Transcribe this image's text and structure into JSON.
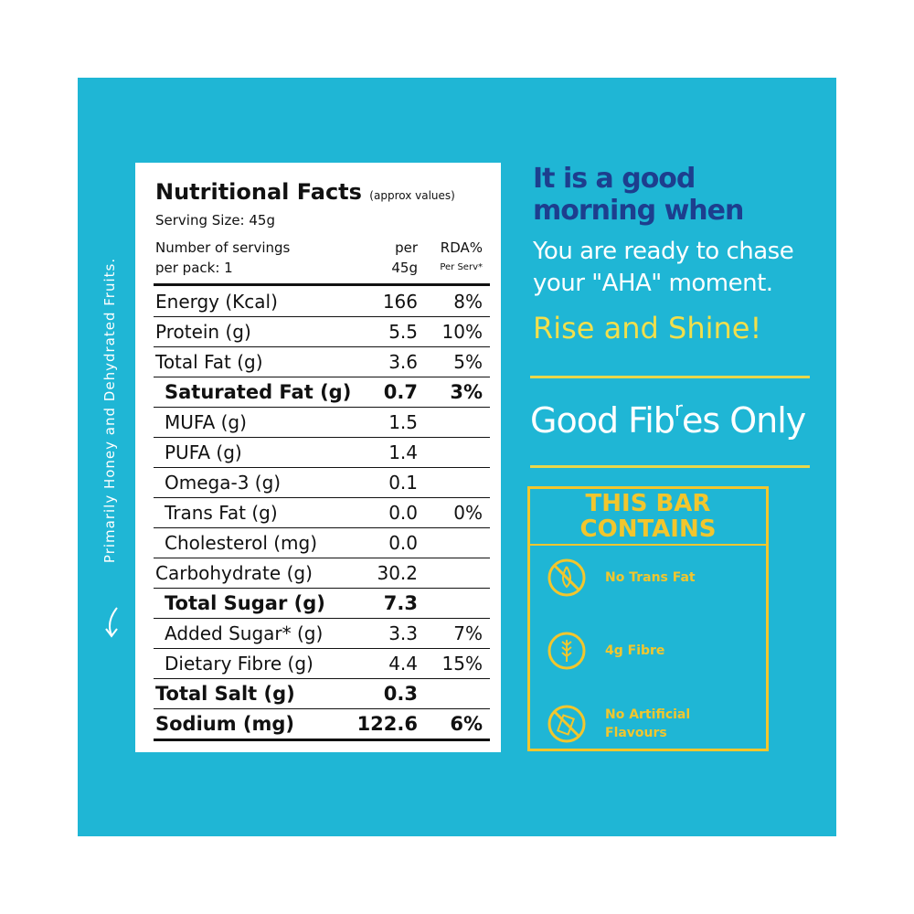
{
  "panel": {
    "side_note": "Primarily Honey and Dehydrated Fruits."
  },
  "table": {
    "title": "Nutritional Facts",
    "title_note": "(approx values)",
    "serving_size": "Serving Size: 45g",
    "servings": [
      "Number of servings",
      "per pack: 1"
    ],
    "col_per": [
      "per",
      "45g"
    ],
    "col_rda": [
      "RDA%",
      "Per Serv*"
    ],
    "rows": [
      {
        "label": "Energy (Kcal)",
        "per": "166",
        "rda": "8%"
      },
      {
        "label": "Protein (g)",
        "per": "5.5",
        "rda": "10%"
      },
      {
        "label": "Total Fat (g)",
        "per": "3.6",
        "rda": "5%"
      },
      {
        "label": "Saturated Fat (g)",
        "per": "0.7",
        "rda": "3%",
        "bold": true,
        "indent": true
      },
      {
        "label": "MUFA (g)",
        "per": "1.5",
        "indent": true
      },
      {
        "label": "PUFA (g)",
        "per": "1.4",
        "indent": true
      },
      {
        "label": "Omega-3 (g)",
        "per": "0.1",
        "indent": true
      },
      {
        "label": "Trans Fat (g)",
        "per": "0.0",
        "rda": "0%",
        "indent": true
      },
      {
        "label": "Cholesterol (mg)",
        "per": "0.0",
        "indent": true
      },
      {
        "label": "Carbohydrate (g)",
        "per": "30.2"
      },
      {
        "label": "Total Sugar (g)",
        "per": "7.3",
        "bold": true,
        "indent": true
      },
      {
        "label": "Added Sugar* (g)",
        "per": "3.3",
        "rda": "7%",
        "indent": true
      },
      {
        "label": "Dietary Fibre (g)",
        "per": "4.4",
        "rda": "15%",
        "indent": true
      },
      {
        "label": "Total Salt (g)",
        "per": "0.3",
        "bold": true
      },
      {
        "label": "Sodium (mg)",
        "per": "122.6",
        "rda": "6%",
        "bold": true
      }
    ]
  },
  "promo": {
    "headline": [
      "It is a good",
      "morning when"
    ],
    "subline": [
      "You are ready to chase",
      "your \"AHA\" moment."
    ],
    "slogan": "Rise and Shine!",
    "tagline": [
      "Good Fib",
      "r",
      "es Only"
    ],
    "box": {
      "title": [
        "THIS BAR",
        "CONTAINS"
      ],
      "items": [
        {
          "label": [
            "No Trans Fat"
          ]
        },
        {
          "label": [
            "4g Fibre"
          ]
        },
        {
          "label": [
            "No Artificial",
            "Flavours"
          ]
        }
      ]
    }
  }
}
